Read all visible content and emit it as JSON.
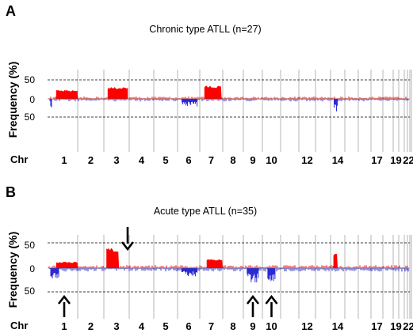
{
  "chart_data": [
    {
      "type": "bar",
      "panel": "A",
      "title": "Chronic type ATLL (n=27)",
      "ylabel": "Frequency (%)",
      "y_ticks": [
        "50",
        "0",
        "50"
      ],
      "ylim": [
        -50,
        50
      ],
      "x_label_prefix": "Chr",
      "chromosome_labels": [
        "1",
        "2",
        "3",
        "4",
        "5",
        "6",
        "7",
        "8",
        "9",
        "10",
        "12",
        "14",
        "17",
        "19",
        "22"
      ],
      "colors": {
        "gain": "#ff0000",
        "loss": "#2a2ad6"
      },
      "gain_segments": [
        {
          "chr": "1",
          "from": 0.2,
          "to": 1.0,
          "value": 22
        },
        {
          "chr": "3",
          "from": 0.15,
          "to": 0.95,
          "value": 30
        },
        {
          "chr": "7",
          "from": 0.2,
          "to": 0.95,
          "value": 33
        }
      ],
      "loss_segments": [
        {
          "chr": "1",
          "from": 0.0,
          "to": 0.05,
          "value": -40
        },
        {
          "chr": "6",
          "from": 0.2,
          "to": 0.9,
          "value": -22
        },
        {
          "chr": "14",
          "from": 0.25,
          "to": 0.5,
          "value": -35
        }
      ],
      "arrows": []
    },
    {
      "type": "bar",
      "panel": "B",
      "title": "Acute type ATLL (n=35)",
      "ylabel": "Frequency (%)",
      "y_ticks": [
        "50",
        "0",
        "50"
      ],
      "ylim": [
        -50,
        50
      ],
      "x_label_prefix": "Chr",
      "chromosome_labels": [
        "1",
        "2",
        "3",
        "4",
        "5",
        "6",
        "7",
        "8",
        "9",
        "10",
        "12",
        "14",
        "17",
        "19",
        "22"
      ],
      "colors": {
        "gain": "#ff0000",
        "loss": "#2a2ad6"
      },
      "gain_segments": [
        {
          "chr": "1",
          "from": 0.2,
          "to": 1.0,
          "value": 12
        },
        {
          "chr": "3",
          "from": 0.1,
          "to": 0.6,
          "value": 38
        },
        {
          "chr": "7",
          "from": 0.3,
          "to": 1.0,
          "value": 17
        },
        {
          "chr": "14",
          "from": 0.2,
          "to": 0.5,
          "value": 27
        }
      ],
      "loss_segments": [
        {
          "chr": "1",
          "from": 0.0,
          "to": 0.3,
          "value": -22
        },
        {
          "chr": "6",
          "from": 0.2,
          "to": 0.9,
          "value": -18
        },
        {
          "chr": "9",
          "from": 0.2,
          "to": 0.8,
          "value": -30
        },
        {
          "chr": "10",
          "from": 0.3,
          "to": 0.7,
          "value": -28
        }
      ],
      "arrows": [
        {
          "chr": "3",
          "direction": "down"
        },
        {
          "chr": "1",
          "direction": "up"
        },
        {
          "chr": "9",
          "direction": "up"
        },
        {
          "chr": "10",
          "direction": "up"
        }
      ]
    }
  ]
}
